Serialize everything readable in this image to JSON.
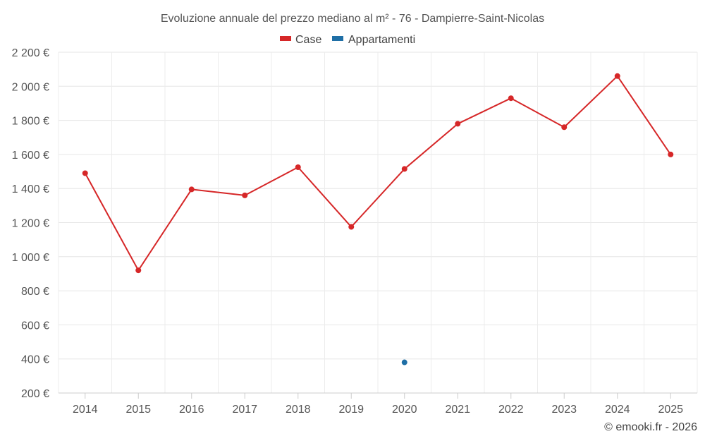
{
  "chart_data": {
    "type": "line",
    "title": "Evoluzione annuale del prezzo mediano al m² - 76 - Dampierre-Saint-Nicolas",
    "categories": [
      "2014",
      "2015",
      "2016",
      "2017",
      "2018",
      "2019",
      "2020",
      "2021",
      "2022",
      "2023",
      "2024",
      "2025"
    ],
    "series": [
      {
        "name": "Case",
        "color": "#d62728",
        "values": [
          1490,
          920,
          1395,
          1360,
          1525,
          1175,
          1515,
          1780,
          1930,
          1760,
          2060,
          1600
        ]
      },
      {
        "name": "Appartamenti",
        "color": "#1f6fa6",
        "values": [
          null,
          null,
          null,
          null,
          null,
          null,
          380,
          null,
          null,
          null,
          null,
          null
        ]
      }
    ],
    "ylim": [
      200,
      2200
    ],
    "yticks": [
      200,
      400,
      600,
      800,
      1000,
      1200,
      1400,
      1600,
      1800,
      2000,
      2200
    ],
    "ytick_labels": [
      "200 €",
      "400 €",
      "600 €",
      "800 €",
      "1 000 €",
      "1 200 €",
      "1 400 €",
      "1 600 €",
      "1 800 €",
      "2 000 €",
      "2 200 €"
    ],
    "xlabel": "",
    "ylabel": "",
    "grid": true,
    "legend_position": "top-center"
  },
  "credit": "© emooki.fr - 2026"
}
